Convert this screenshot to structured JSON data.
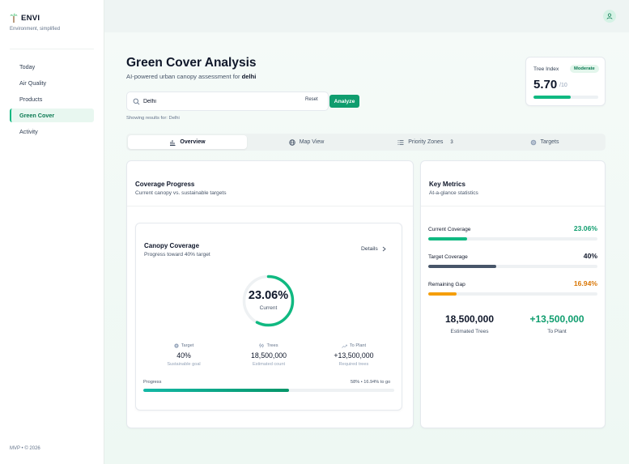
{
  "brand": {
    "name": "ENVI",
    "tagline": "Environment, simplified"
  },
  "nav": [
    {
      "label": "Today",
      "active": false
    },
    {
      "label": "Air Quality",
      "active": false
    },
    {
      "label": "Products",
      "active": false
    },
    {
      "label": "Green Cover",
      "active": true
    },
    {
      "label": "Activity",
      "active": false
    }
  ],
  "footer": "MVP • © 2026",
  "header": {
    "title": "Green Cover Analysis",
    "subtitle_prefix": "AI-powered urban canopy assessment for ",
    "subtitle_city": "delhi"
  },
  "search": {
    "value": "Delhi",
    "placeholder": "Search city",
    "reset_label": "Reset",
    "analyze_label": "Analyze",
    "showing_text": "Showing results for: Delhi"
  },
  "tree_index": {
    "label": "Tree Index",
    "badge": "Moderate",
    "value": "5.70",
    "max": "/10",
    "progress": 0.57,
    "accent": "#10b981"
  },
  "tabs": [
    {
      "label": "Overview",
      "icon": "bar-chart-icon",
      "active": true,
      "count": ""
    },
    {
      "label": "Map View",
      "icon": "globe-icon",
      "active": false,
      "count": ""
    },
    {
      "label": "Priority Zones",
      "icon": "list-icon",
      "active": false,
      "count": "3"
    },
    {
      "label": "Targets",
      "icon": "target-icon",
      "active": false,
      "count": ""
    }
  ],
  "coverage": {
    "title": "Coverage Progress",
    "subtitle": "Current canopy vs. sustainable targets",
    "canopy_title": "Canopy Coverage",
    "canopy_subtitle": "Progress toward 40% target",
    "details_label": "Details",
    "ring_value": "23.06%",
    "ring_label": "Current",
    "ring_fraction": 0.5765,
    "stats": [
      {
        "head": "Target",
        "icon": "target-icon",
        "value": "40%",
        "sub": "Sustainable goal"
      },
      {
        "head": "Trees",
        "icon": "trees-icon",
        "value": "18,500,000",
        "sub": "Estimated count"
      },
      {
        "head": "To Plant",
        "icon": "trend-up-icon",
        "value": "+13,500,000",
        "sub": "Required trees"
      }
    ],
    "progress_label": "Progress",
    "progress_right": "58% • 16.94% to go",
    "progress": 0.58
  },
  "key_metrics": {
    "title": "Key Metrics",
    "subtitle": "At-a-glance statistics",
    "metrics": [
      {
        "label": "Current Coverage",
        "value": "23.06%",
        "fraction": 0.2306,
        "color": "#0f9d6e",
        "bar": "#10b981"
      },
      {
        "label": "Target Coverage",
        "value": "40%",
        "fraction": 0.4,
        "color": "#0f172a",
        "bar": "#475569"
      },
      {
        "label": "Remaining Gap",
        "value": "16.94%",
        "fraction": 0.1694,
        "color": "#d97706",
        "bar": "#f59e0b"
      }
    ],
    "estimated_trees": {
      "value": "18,500,000",
      "label": "Estimated Trees",
      "color": "#0f172a"
    },
    "to_plant": {
      "value": "+13,500,000",
      "label": "To Plant",
      "color": "#0f9d6e"
    }
  }
}
